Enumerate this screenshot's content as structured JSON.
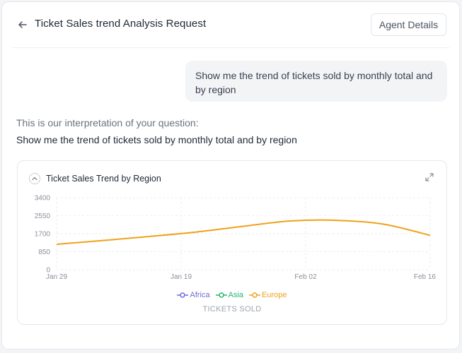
{
  "header": {
    "title": "Ticket Sales trend Analysis Request",
    "agent_button": "Agent Details"
  },
  "conversation": {
    "user_message": "Show me the trend of tickets sold by monthly total and by region",
    "interpretation_label": "This is our interpretation of your question:",
    "interpretation_text": "Show me the trend of tickets sold by monthly total and by region"
  },
  "icons": {
    "back": "arrow-left-icon",
    "collapse": "chevron-up-icon",
    "expand": "expand-icon"
  },
  "chart_data": {
    "type": "line",
    "title": "Ticket Sales Trend by Region",
    "xlabel": "TICKETS SOLD",
    "ylabel": "",
    "x_ticks": [
      "Jan 29",
      "Jan 19",
      "Feb 02",
      "Feb 16"
    ],
    "y_ticks": [
      "3400",
      "2550",
      "1700",
      "850",
      "0"
    ],
    "ylim": [
      0,
      3400
    ],
    "grid": true,
    "legend_position": "bottom",
    "legend": [
      "Africa",
      "Asia",
      "Europe"
    ],
    "colors": {
      "Africa": "#6b6fd6",
      "Asia": "#22b573",
      "Europe": "#eea21b"
    },
    "series": [
      {
        "name": "Africa",
        "values": []
      },
      {
        "name": "Asia",
        "values": []
      },
      {
        "name": "Europe",
        "values": [
          1200,
          1380,
          1570,
          1780,
          2050,
          2300,
          2330,
          2150,
          1620
        ]
      }
    ],
    "x_positions": [
      0,
      0.125,
      0.25,
      0.375,
      0.5,
      0.625,
      0.75,
      0.875,
      1
    ]
  }
}
